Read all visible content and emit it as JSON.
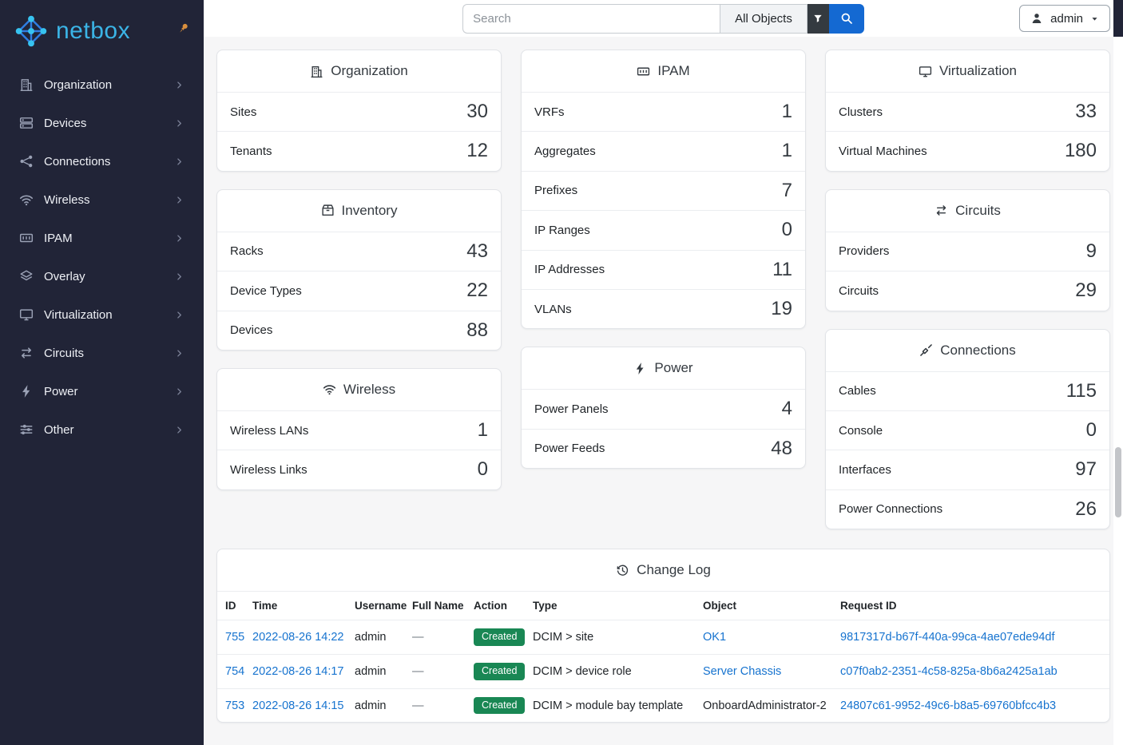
{
  "colors": {
    "sidebar_bg": "#212437",
    "brand_blue": "#3bb4e6",
    "pin_orange": "#d98f3d",
    "link_blue": "#1673cf",
    "primary_button_blue": "#1469d2",
    "filter_button_dark": "#343a40",
    "success_green": "#198754"
  },
  "sidebar": {
    "logo_text": "netbox",
    "items": [
      {
        "label": "Organization",
        "icon": "building-icon"
      },
      {
        "label": "Devices",
        "icon": "server-icon"
      },
      {
        "label": "Connections",
        "icon": "share-network-icon"
      },
      {
        "label": "Wireless",
        "icon": "wifi-icon"
      },
      {
        "label": "IPAM",
        "icon": "counter-icon"
      },
      {
        "label": "Overlay",
        "icon": "layers-icon"
      },
      {
        "label": "Virtualization",
        "icon": "monitor-icon"
      },
      {
        "label": "Circuits",
        "icon": "transfer-icon"
      },
      {
        "label": "Power",
        "icon": "bolt-icon"
      },
      {
        "label": "Other",
        "icon": "sliders-icon"
      }
    ]
  },
  "topbar": {
    "search_placeholder": "Search",
    "object_type_label": "All Objects",
    "username": "admin"
  },
  "dashboard": {
    "columns": [
      [
        {
          "title": "Organization",
          "icon": "building-icon",
          "stats": [
            {
              "label": "Sites",
              "value": "30"
            },
            {
              "label": "Tenants",
              "value": "12"
            }
          ]
        },
        {
          "title": "Inventory",
          "icon": "inventory-icon",
          "stats": [
            {
              "label": "Racks",
              "value": "43"
            },
            {
              "label": "Device Types",
              "value": "22"
            },
            {
              "label": "Devices",
              "value": "88"
            }
          ]
        },
        {
          "title": "Wireless",
          "icon": "wifi-icon",
          "stats": [
            {
              "label": "Wireless LANs",
              "value": "1"
            },
            {
              "label": "Wireless Links",
              "value": "0"
            }
          ]
        }
      ],
      [
        {
          "title": "IPAM",
          "icon": "counter-icon",
          "stats": [
            {
              "label": "VRFs",
              "value": "1"
            },
            {
              "label": "Aggregates",
              "value": "1"
            },
            {
              "label": "Prefixes",
              "value": "7"
            },
            {
              "label": "IP Ranges",
              "value": "0"
            },
            {
              "label": "IP Addresses",
              "value": "11"
            },
            {
              "label": "VLANs",
              "value": "19"
            }
          ]
        },
        {
          "title": "Power",
          "icon": "bolt-icon",
          "stats": [
            {
              "label": "Power Panels",
              "value": "4"
            },
            {
              "label": "Power Feeds",
              "value": "48"
            }
          ]
        }
      ],
      [
        {
          "title": "Virtualization",
          "icon": "monitor-icon",
          "stats": [
            {
              "label": "Clusters",
              "value": "33"
            },
            {
              "label": "Virtual Machines",
              "value": "180"
            }
          ]
        },
        {
          "title": "Circuits",
          "icon": "transfer-icon",
          "stats": [
            {
              "label": "Providers",
              "value": "9"
            },
            {
              "label": "Circuits",
              "value": "29"
            }
          ]
        },
        {
          "title": "Connections",
          "icon": "cable-icon",
          "stats": [
            {
              "label": "Cables",
              "value": "115"
            },
            {
              "label": "Console",
              "value": "0"
            },
            {
              "label": "Interfaces",
              "value": "97"
            },
            {
              "label": "Power Connections",
              "value": "26"
            }
          ]
        }
      ]
    ]
  },
  "changelog": {
    "title": "Change Log",
    "icon": "history-icon",
    "columns": [
      "ID",
      "Time",
      "Username",
      "Full Name",
      "Action",
      "Type",
      "Object",
      "Request ID"
    ],
    "rows": [
      {
        "id": "755",
        "time": "2022-08-26 14:22",
        "username": "admin",
        "full_name": "—",
        "action": "Created",
        "type": "DCIM > site",
        "object": "OK1",
        "object_is_link": true,
        "request_id": "9817317d-b67f-440a-99ca-4ae07ede94df"
      },
      {
        "id": "754",
        "time": "2022-08-26 14:17",
        "username": "admin",
        "full_name": "—",
        "action": "Created",
        "type": "DCIM > device role",
        "object": "Server Chassis",
        "object_is_link": true,
        "request_id": "c07f0ab2-2351-4c58-825a-8b6a2425a1ab"
      },
      {
        "id": "753",
        "time": "2022-08-26 14:15",
        "username": "admin",
        "full_name": "—",
        "action": "Created",
        "type": "DCIM > module bay template",
        "object": "OnboardAdministrator-2",
        "object_is_link": false,
        "request_id": "24807c61-9952-49c6-b8a5-69760bfcc4b3"
      }
    ]
  }
}
